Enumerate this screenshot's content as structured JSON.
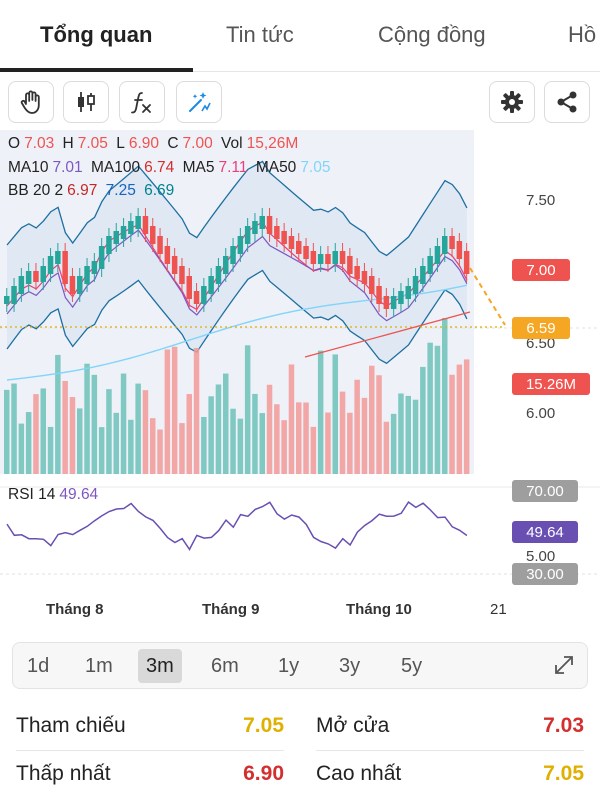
{
  "tabs": [
    {
      "label": "Tổng quan",
      "active": true
    },
    {
      "label": "Tin tức",
      "active": false
    },
    {
      "label": "Cộng đồng",
      "active": false
    },
    {
      "label": "Hồ",
      "active": false
    }
  ],
  "toolbar": {
    "left_icons": [
      "hand-drag-icon",
      "candlestick-icon",
      "function-fx-icon",
      "magic-wand-icon"
    ],
    "right_icons": [
      "gear-icon",
      "share-icon"
    ]
  },
  "legend": {
    "ohlc": {
      "o_label": "O",
      "o": "7.03",
      "h_label": "H",
      "h": "7.05",
      "l_label": "L",
      "l": "6.90",
      "c_label": "C",
      "c": "7.00",
      "vol_label": "Vol",
      "vol": "15,26M"
    },
    "ma": {
      "ma10_label": "MA10",
      "ma10": "7.01",
      "ma100_label": "MA100",
      "ma100": "6.74",
      "ma5_label": "MA5",
      "ma5": "7.11",
      "ma50_label": "MA50",
      "ma50": "7.05"
    },
    "bb": {
      "label": "BB 20 2",
      "upper": "6.97",
      "middle": "7.25",
      "lower": "6.69"
    },
    "rsi": {
      "label": "RSI 14",
      "value": "49.64"
    }
  },
  "price_axis": {
    "ticks": [
      "7.50",
      "6.50",
      "6.00"
    ],
    "current_price_badge": "7.00",
    "bb_badge": "6.59",
    "volume_badge": "15.26M"
  },
  "rsi_axis": {
    "upper_badge": "70.00",
    "value_badge": "49.64",
    "mid_tick": "5.00",
    "lower_badge": "30.00"
  },
  "time_axis": {
    "months": [
      "Tháng 8",
      "Tháng 9",
      "Tháng 10"
    ],
    "day_label": "21"
  },
  "periods": [
    {
      "label": "1d",
      "active": false
    },
    {
      "label": "1m",
      "active": false
    },
    {
      "label": "3m",
      "active": true
    },
    {
      "label": "6m",
      "active": false
    },
    {
      "label": "1y",
      "active": false
    },
    {
      "label": "3y",
      "active": false
    },
    {
      "label": "5y",
      "active": false
    }
  ],
  "info": {
    "reference_label": "Tham chiếu",
    "reference_value": "7.05",
    "open_label": "Mở cửa",
    "open_value": "7.03",
    "low_label": "Thấp nhất",
    "low_value": "6.90",
    "high_label": "Cao nhất",
    "high_value": "7.05"
  },
  "colors": {
    "up": "#26a69a",
    "down": "#ef5350",
    "reference": "#e0b000",
    "rsi_line": "#6a4fb3",
    "bb_band": "#1e6fa0",
    "bb_badge": "#f5a623"
  }
}
